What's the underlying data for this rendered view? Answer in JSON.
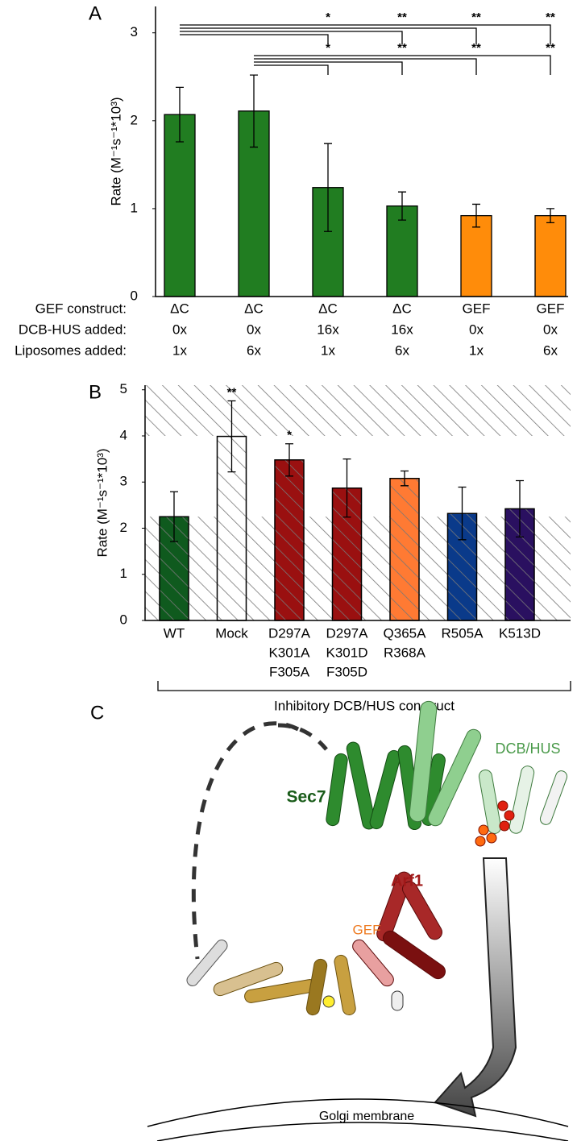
{
  "chart_data": [
    {
      "type": "bar",
      "panel": "A",
      "y_label": "Rate (M⁻¹s⁻¹*10³)",
      "values": [
        2.07,
        2.11,
        1.24,
        1.03,
        0.92,
        0.92
      ],
      "errors": [
        0.31,
        0.41,
        0.5,
        0.16,
        0.13,
        0.08
      ],
      "colors": [
        "#217d21",
        "#217d21",
        "#217d21",
        "#217d21",
        "#ff8c0a",
        "#ff8c0a"
      ],
      "ylim": [
        0,
        3.3
      ],
      "yticks": [
        0,
        1,
        2,
        3
      ],
      "table": {
        "row_labels": [
          "GEF construct:",
          "DCB-HUS added:",
          "Liposomes added:"
        ],
        "rows": [
          [
            "ΔC",
            "ΔC",
            "ΔC",
            "ΔC",
            "GEF",
            "GEF"
          ],
          [
            "0x",
            "0x",
            "16x",
            "16x",
            "0x",
            "0x"
          ],
          [
            "1x",
            "6x",
            "1x",
            "6x",
            "1x",
            "6x"
          ]
        ]
      },
      "significance": [
        {
          "from": 0,
          "to": [
            2,
            3,
            4,
            5
          ],
          "labels": [
            "*",
            "**",
            "**",
            "**"
          ]
        },
        {
          "from": 1,
          "to": [
            2,
            3,
            4,
            5
          ],
          "labels": [
            "*",
            "**",
            "**",
            "**"
          ]
        }
      ]
    },
    {
      "type": "bar",
      "panel": "B",
      "y_label": "Rate (M⁻¹s⁻¹*10³)",
      "categories": [
        [
          "WT"
        ],
        [
          "Mock"
        ],
        [
          "D297A",
          "K301A",
          "F305A"
        ],
        [
          "D297A",
          "K301D",
          "F305D"
        ],
        [
          "Q365A",
          "R368A"
        ],
        [
          "R505A"
        ],
        [
          "K513D"
        ]
      ],
      "values": [
        2.25,
        3.99,
        3.48,
        2.87,
        3.08,
        2.32,
        2.42
      ],
      "errors": [
        0.54,
        0.77,
        0.35,
        0.63,
        0.16,
        0.57,
        0.61
      ],
      "colors": [
        "#0f5a1e",
        "#ffffff",
        "#9a1010",
        "#9a1010",
        "#ff7a33",
        "#0a3a8a",
        "#2a1060"
      ],
      "ylim": [
        0,
        5.1
      ],
      "yticks": [
        0,
        1,
        2,
        3,
        4,
        5
      ],
      "hatched_ranges": [
        [
          0,
          2.25
        ],
        [
          4,
          5.1
        ]
      ],
      "hatched_bars": true,
      "significance": [
        {
          "index": 1,
          "label": "**"
        },
        {
          "index": 2,
          "label": "*"
        }
      ],
      "group_label": "Inhibitory DCB/HUS construct"
    }
  ],
  "panel_c": {
    "label": "C",
    "sec7": "Sec7",
    "dcb_hus": "DCB/HUS",
    "arf1": "Arf1",
    "gef": "GEF",
    "membrane": "Golgi membrane"
  }
}
